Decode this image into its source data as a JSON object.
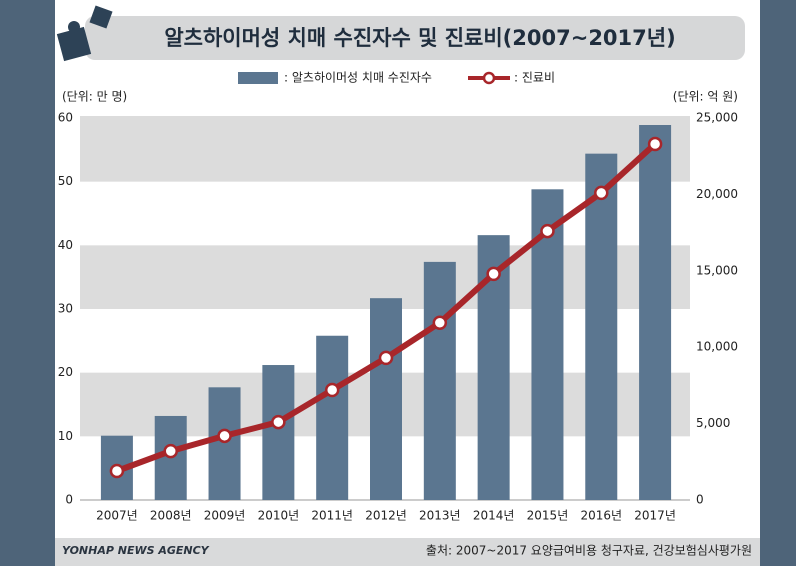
{
  "chart_data": {
    "type": "bar_line",
    "title": "알츠하이머성 치매 수진자수 및 진료비(2007~2017년)",
    "y_unit": "(단위: 만 명)",
    "y2_unit": "(단위: 억 원)",
    "source": "출처: 2007~2017 요양급여비용 청구자료, 건강보험심사평가원",
    "logo": "YONHAP NEWS AGENCY",
    "categories": [
      "2007년",
      "2008년",
      "2009년",
      "2010년",
      "2011년",
      "2012년",
      "2013년",
      "2014년",
      "2015년",
      "2016년",
      "2017년"
    ],
    "series": [
      {
        "name": ": 알츠하이머성 치매 수진자수",
        "type": "bar",
        "color": "#5b7690",
        "axis": "y",
        "values": [
          10.1,
          13.2,
          17.7,
          21.2,
          25.8,
          31.7,
          37.4,
          41.6,
          48.8,
          54.4,
          58.9
        ]
      },
      {
        "name": ": 진료비",
        "type": "line",
        "color": "#a8262a",
        "axis": "y2",
        "values": [
          1900,
          3200,
          4200,
          5100,
          7200,
          9300,
          11600,
          14800,
          17600,
          20100,
          23300
        ]
      }
    ],
    "ylim": [
      0,
      60
    ],
    "yticks": [
      0,
      10,
      20,
      30,
      40,
      50,
      60
    ],
    "y2lim": [
      0,
      25000
    ],
    "y2ticks": [
      0,
      {
        "value": 5000,
        "label": "5,000"
      },
      {
        "value": 10000,
        "label": "10,000"
      },
      {
        "value": 15000,
        "label": "15,000"
      },
      {
        "value": 20000,
        "label": "20,000"
      },
      {
        "value": 25000,
        "label": "25,000"
      }
    ],
    "grid": "bands"
  }
}
